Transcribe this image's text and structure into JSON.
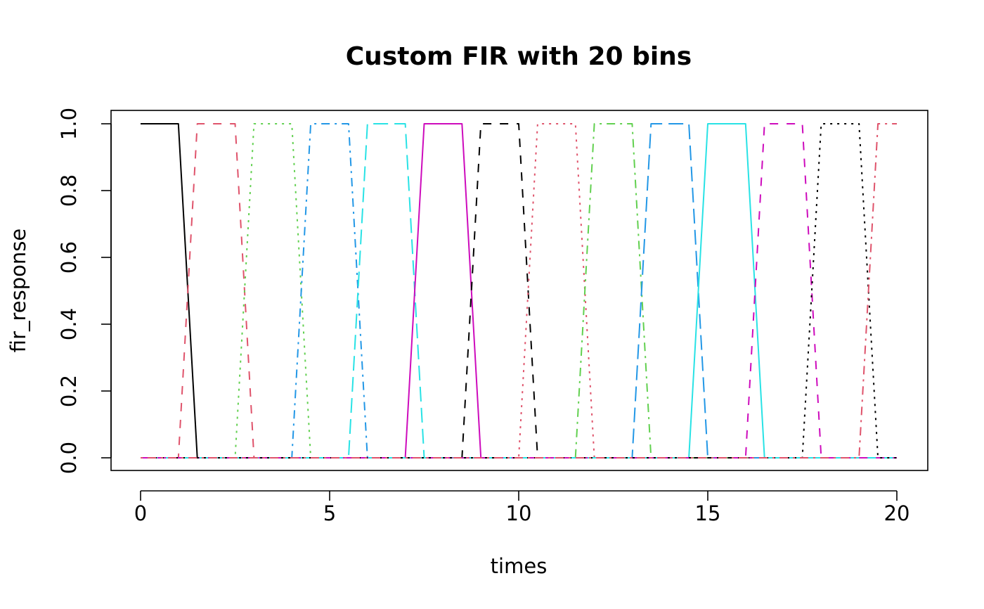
{
  "chart_data": {
    "type": "line",
    "title": "Custom FIR with 20 bins",
    "xlabel": "times",
    "ylabel": "fir_response",
    "xlim": [
      0,
      20
    ],
    "ylim": [
      0,
      1
    ],
    "x_ticks": [
      0,
      5,
      10,
      15,
      20
    ],
    "y_ticks": [
      0.0,
      0.2,
      0.4,
      0.6,
      0.8,
      1.0
    ],
    "x_tick_labels": [
      "0",
      "5",
      "10",
      "15",
      "20"
    ],
    "y_tick_labels": [
      "0.0",
      "0.2",
      "0.4",
      "0.6",
      "0.8",
      "1.0"
    ],
    "grid": false,
    "legend": "none",
    "sample_step": 0.5,
    "bin_width": 1.5,
    "bin_spacing": 1.5,
    "series": [
      {
        "color": "#000000",
        "dash": "solid",
        "start": 0.0
      },
      {
        "color": "#DF536B",
        "dash": "dashed",
        "start": 1.5
      },
      {
        "color": "#61D04F",
        "dash": "dotted",
        "start": 3.0
      },
      {
        "color": "#2297E6",
        "dash": "dotdash",
        "start": 4.5
      },
      {
        "color": "#28E2E5",
        "dash": "longdash",
        "start": 6.0
      },
      {
        "color": "#CD0BBC",
        "dash": "solid",
        "start": 7.5
      },
      {
        "color": "#000000",
        "dash": "dashed",
        "start": 9.0
      },
      {
        "color": "#DF536B",
        "dash": "dotted",
        "start": 10.5
      },
      {
        "color": "#61D04F",
        "dash": "dotdash",
        "start": 12.0
      },
      {
        "color": "#2297E6",
        "dash": "longdash",
        "start": 13.5
      },
      {
        "color": "#28E2E5",
        "dash": "solid",
        "start": 15.0
      },
      {
        "color": "#CD0BBC",
        "dash": "dashed",
        "start": 16.5
      },
      {
        "color": "#000000",
        "dash": "dotted",
        "start": 18.0
      },
      {
        "color": "#DF536B",
        "dash": "dotdash",
        "start": 19.5
      }
    ]
  }
}
